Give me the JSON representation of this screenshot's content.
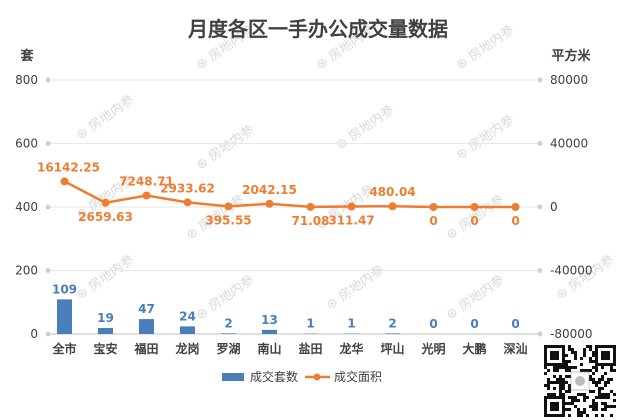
{
  "chart_data": {
    "type": "bar",
    "title": "月度各区一手办公成交量数据",
    "y_left_label": "套",
    "y_right_label": "平方米",
    "y_left_ticks": [
      "0",
      "200",
      "400",
      "600",
      "800"
    ],
    "y_right_ticks": [
      "-80000",
      "-40000",
      "0",
      "40000",
      "80000"
    ],
    "ylim_left": [
      0,
      800
    ],
    "ylim_right": [
      -80000,
      80000
    ],
    "categories": [
      "全市",
      "宝安",
      "福田",
      "龙岗",
      "罗湖",
      "南山",
      "盐田",
      "龙华",
      "坪山",
      "光明",
      "大鹏",
      "深汕"
    ],
    "series": [
      {
        "name": "成交套数",
        "type": "bar",
        "axis": "left",
        "values": [
          109,
          19,
          47,
          24,
          2,
          13,
          1,
          1,
          2,
          0,
          0,
          0
        ],
        "labels": [
          "109",
          "19",
          "47",
          "24",
          "2",
          "13",
          "1",
          "1",
          "2",
          "0",
          "0",
          "0"
        ],
        "color": "#4a7ebb"
      },
      {
        "name": "成交面积",
        "type": "line",
        "axis": "right",
        "values": [
          16142.25,
          2659.63,
          7248.71,
          2933.62,
          395.55,
          2042.15,
          71.08,
          311.47,
          480.04,
          0,
          0,
          0
        ],
        "labels": [
          "16142.25",
          "2659.63",
          "7248.71",
          "2933.62",
          "395.55",
          "2042.15",
          "71.08",
          "311.47",
          "480.04",
          "0",
          "0",
          "0"
        ],
        "color": "#ed7d31"
      }
    ],
    "legend_position": "bottom",
    "grid": true
  },
  "watermark": "房地内参"
}
